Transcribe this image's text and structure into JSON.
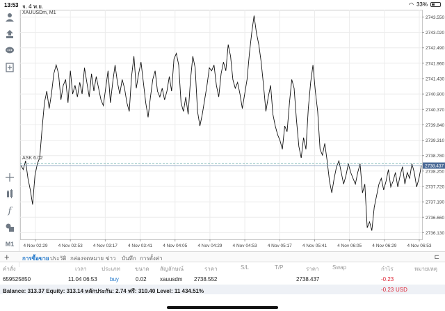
{
  "status_bar": {
    "time": "13:53",
    "date": "จ. 4 พ.ย.",
    "battery": "33%"
  },
  "chart": {
    "symbol": "XAUUSDm, M1",
    "ref_label": "ASK 6.02",
    "price_labels": [
      "2743.550",
      "2743.020",
      "2742.490",
      "2741.960",
      "2741.430",
      "2740.900",
      "2740.370",
      "2739.840",
      "2739.310",
      "2738.780",
      "2738.250",
      "2737.720",
      "2737.190",
      "2736.660",
      "2736.130"
    ],
    "current_price": "2738.437",
    "time_labels": [
      "4 Nov 02:29",
      "4 Nov 02:53",
      "4 Nov 03:17",
      "4 Nov 03:41",
      "4 Nov 04:05",
      "4 Nov 04:29",
      "4 Nov 04:53",
      "4 Nov 05:17",
      "4 Nov 05:41",
      "4 Nov 06:05",
      "4 Nov 06:29",
      "4 Nov 06:53"
    ]
  },
  "chart_data": {
    "type": "line",
    "title": "XAUUSDm, M1",
    "xlabel": "",
    "ylabel": "",
    "ylim": [
      2735.9,
      2743.8
    ],
    "grid": true,
    "series": [
      {
        "values": [
          2738.45,
          2738.3,
          2738.6,
          2738.0,
          2737.6,
          2737.1,
          2738.1,
          2738.5,
          2738.7,
          2739.7,
          2740.6,
          2741.0,
          2740.4,
          2740.9,
          2741.6,
          2741.9,
          2741.6,
          2740.7,
          2741.2,
          2741.4,
          2740.6,
          2741.7,
          2740.9,
          2741.2,
          2740.8,
          2741.3,
          2740.9,
          2741.8,
          2741.3,
          2740.8,
          2741.6,
          2741.0,
          2741.5,
          2741.1,
          2740.7,
          2740.5,
          2741.1,
          2741.7,
          2740.6,
          2741.3,
          2741.9,
          2741.3,
          2740.9,
          2741.4,
          2741.1,
          2740.6,
          2740.3,
          2741.5,
          2742.2,
          2741.1,
          2741.6,
          2742.0,
          2741.3,
          2740.6,
          2740.1,
          2740.8,
          2741.4,
          2741.7,
          2741.0,
          2740.8,
          2741.1,
          2740.7,
          2741.0,
          2741.5,
          2741.0,
          2742.1,
          2742.3,
          2741.9,
          2740.6,
          2740.3,
          2740.8,
          2740.2,
          2741.4,
          2742.2,
          2741.8,
          2740.3,
          2739.8,
          2740.2,
          2740.7,
          2741.2,
          2741.8,
          2741.7,
          2741.9,
          2741.2,
          2740.8,
          2741.6,
          2742.0,
          2741.7,
          2742.6,
          2742.2,
          2741.4,
          2741.1,
          2741.3,
          2740.9,
          2740.4,
          2740.9,
          2741.4,
          2742.3,
          2743.0,
          2743.6,
          2743.0,
          2742.6,
          2742.0,
          2741.2,
          2740.3,
          2740.8,
          2741.2,
          2740.2,
          2739.8,
          2739.5,
          2739.3,
          2739.0,
          2739.8,
          2739.6,
          2740.6,
          2741.4,
          2741.1,
          2740.0,
          2739.1,
          2738.7,
          2739.4,
          2739.0,
          2740.4,
          2741.3,
          2741.9,
          2741.0,
          2740.3,
          2739.0,
          2738.8,
          2739.2,
          2738.6,
          2737.9,
          2737.5,
          2738.0,
          2738.4,
          2738.6,
          2738.2,
          2737.8,
          2738.1,
          2738.5,
          2738.2,
          2738.0,
          2737.8,
          2738.2,
          2738.5,
          2737.5,
          2737.8,
          2736.3,
          2736.5,
          2736.2,
          2737.0,
          2737.4,
          2737.8,
          2738.0,
          2737.6,
          2737.9,
          2738.3,
          2737.7,
          2737.9,
          2738.2,
          2737.7,
          2738.1,
          2738.4,
          2737.8,
          2738.2,
          2738.0,
          2738.5,
          2738.2,
          2737.7,
          2738.0,
          2738.437
        ]
      }
    ]
  },
  "tabs": {
    "items": [
      "การซื้อขาย",
      "ประวัติ",
      "กล่องจดหมาย",
      "ข่าว",
      "บันทึก",
      "การตั้งค่า"
    ],
    "active": 0
  },
  "table": {
    "headers": [
      "คำสั่ง",
      "เวลา",
      "ประเภท",
      "ขนาด",
      "สัญลักษณ์",
      "ราคา",
      "S/L",
      "T/P",
      "ราคา",
      "Swap",
      "กำไร",
      "หมายเหตุ"
    ],
    "row": {
      "order": "659525850",
      "time": "11.04 06:53",
      "type": "buy",
      "size": "0.02",
      "symbol": "xauusdm",
      "open_price": "2738.552",
      "current_price": "2738.437",
      "profit": "-0.23"
    }
  },
  "balance": {
    "text": "Balance: 313.37 Equity: 313.14 หลักประกัน: 2.74 ฟรี: 310.40 Level: 11 434.51%",
    "profit": "-0.23",
    "currency": "USD"
  },
  "colors": {
    "accent": "#1a73c9",
    "loss": "#dd2233",
    "price_marker_bg": "#4a6a96"
  }
}
